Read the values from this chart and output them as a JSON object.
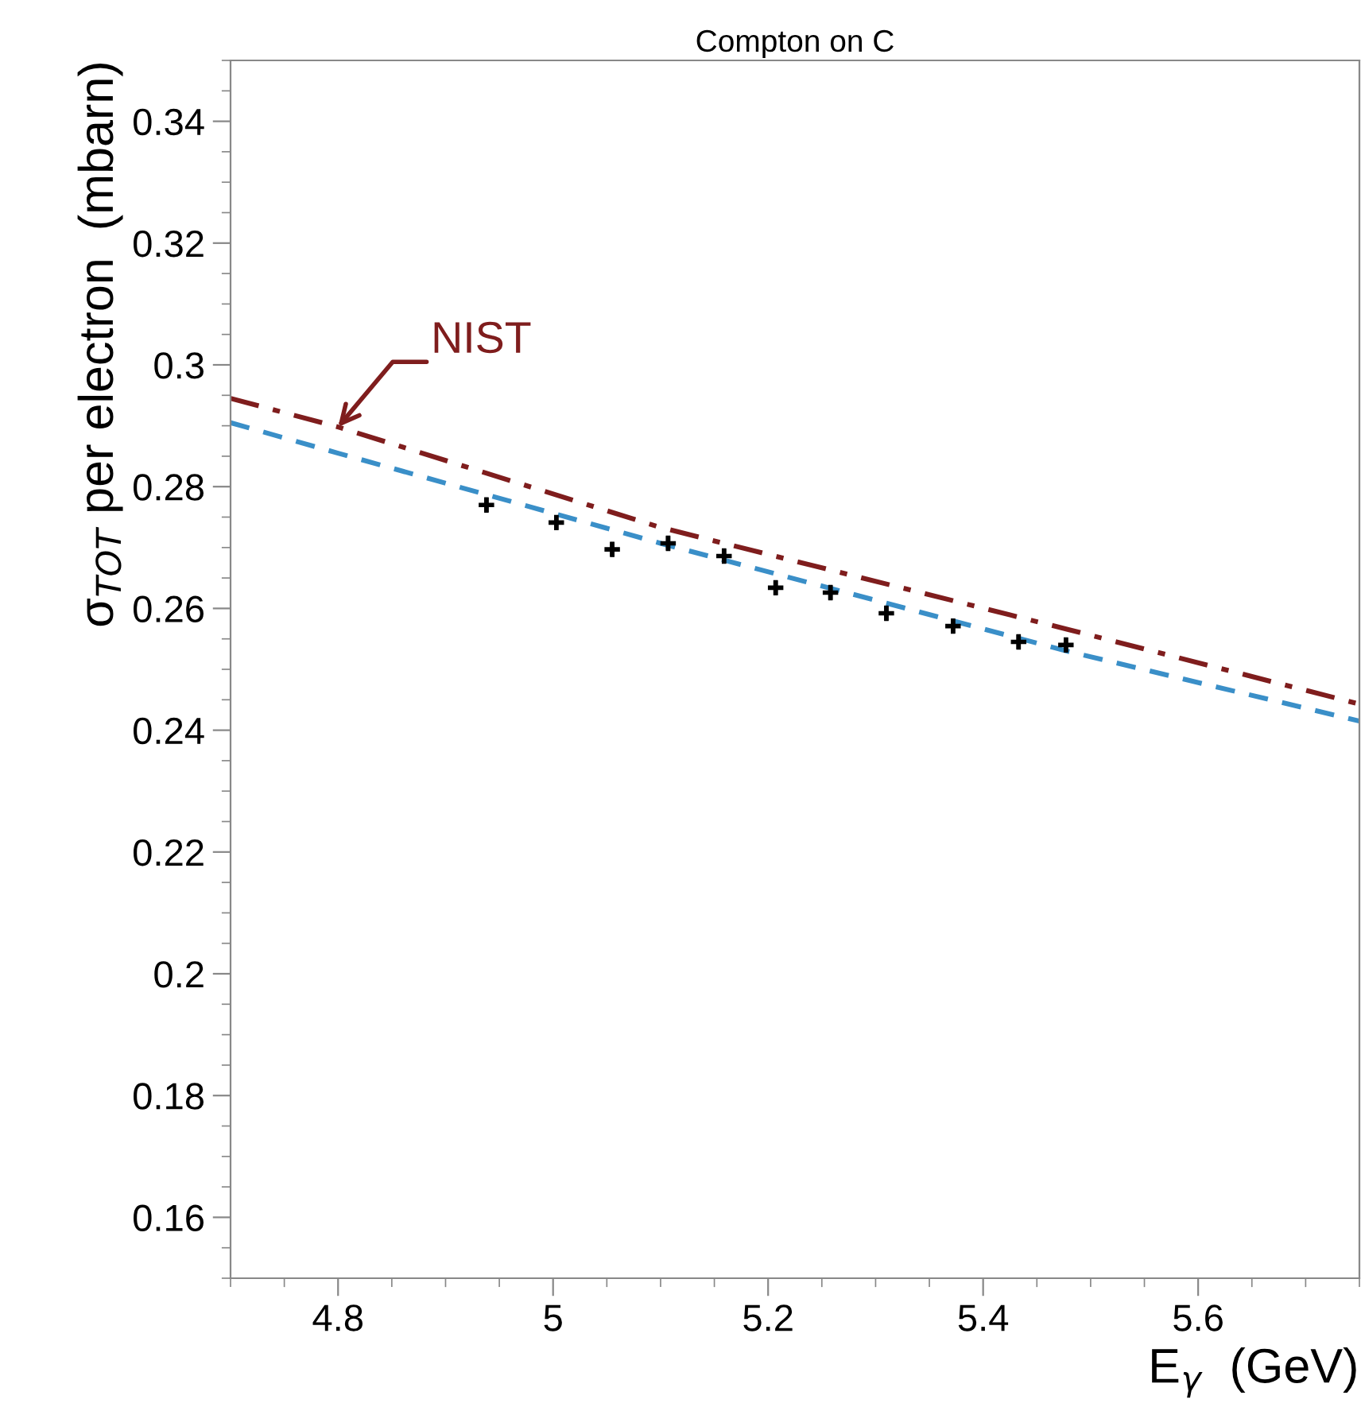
{
  "chart_data": {
    "type": "scatter",
    "title": "Compton on C",
    "xlabel": "E$_{γ}$  (GeV)",
    "ylabel": "σ$_{TOT}$ per electron  (mbarn)",
    "xlim": [
      4.7,
      5.75
    ],
    "xticks": [
      4.8,
      5,
      5.2,
      5.4,
      5.6
    ],
    "ylim": [
      0.15,
      0.35
    ],
    "yticks": [
      0.16,
      0.18,
      0.2,
      0.22,
      0.24,
      0.26,
      0.28,
      0.3,
      0.32,
      0.34
    ],
    "grid": false,
    "legend": false,
    "series": [
      {
        "type": "line",
        "color": "#7f1d1d",
        "line_style": "dashdot",
        "x": [
          4.7,
          4.8,
          5.1,
          5.48,
          5.75
        ],
        "values": [
          0.2945,
          0.2898,
          0.2733,
          0.2565,
          0.2443
        ]
      },
      {
        "type": "line",
        "color": "#3a8fc8",
        "line_style": "dashed",
        "x": [
          4.7,
          4.8,
          5.1,
          5.48,
          5.75
        ],
        "values": [
          0.2905,
          0.2855,
          0.2707,
          0.2529,
          0.2415
        ]
      },
      {
        "color": "#000000",
        "marker": "cross",
        "x": [
          4.938,
          5.003,
          5.055,
          5.107,
          5.159,
          5.207,
          5.258,
          5.31,
          5.372,
          5.433,
          5.477
        ],
        "values": [
          0.277,
          0.2741,
          0.2697,
          0.2707,
          0.2686,
          0.2634,
          0.2626,
          0.2592,
          0.2571,
          0.2545,
          0.254
        ],
        "errors": [
          0.0012,
          0.0012,
          0.0012,
          0.0012,
          0.0012,
          0.0012,
          0.0012,
          0.0012,
          0.0012,
          0.0012,
          0.0012
        ]
      }
    ],
    "annotations": [
      {
        "text": "NIST",
        "x": 4.8,
        "y": 0.2898
      }
    ]
  }
}
